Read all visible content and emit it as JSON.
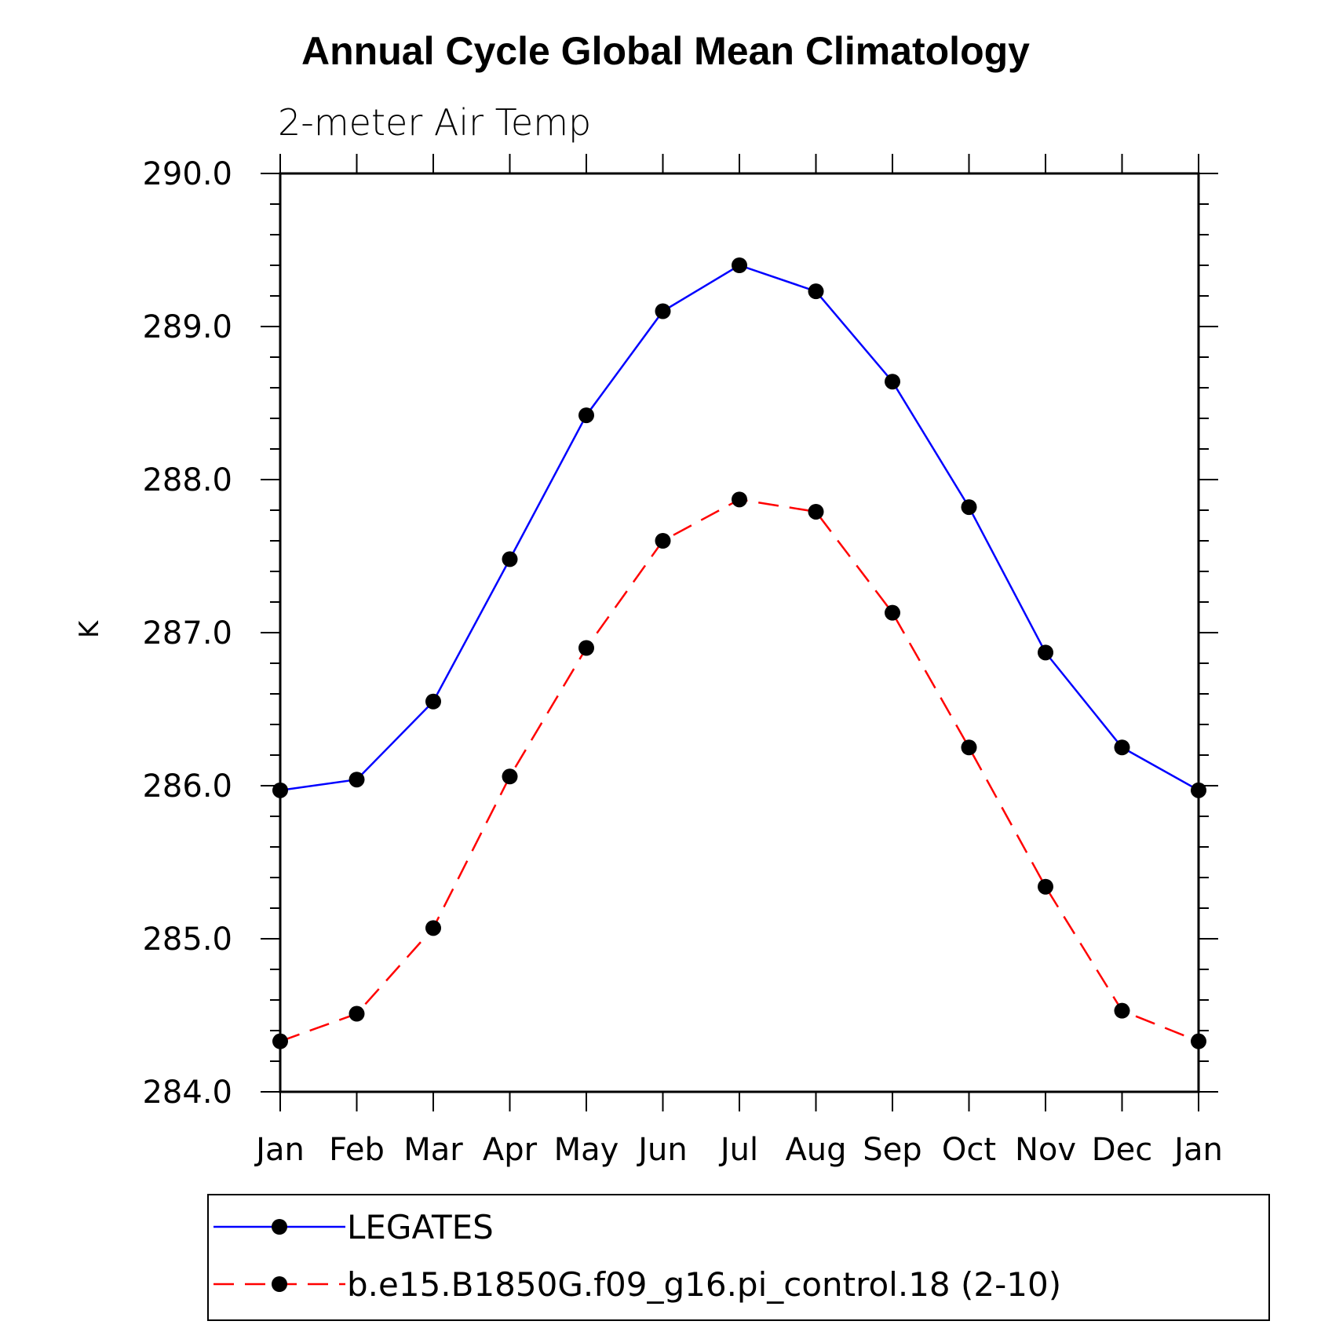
{
  "chart_data": {
    "type": "line",
    "title": "Annual Cycle Global Mean Climatology",
    "subtitle": "2-meter Air Temp",
    "xlabel": "",
    "ylabel": "K",
    "categories": [
      "Jan",
      "Feb",
      "Mar",
      "Apr",
      "May",
      "Jun",
      "Jul",
      "Aug",
      "Sep",
      "Oct",
      "Nov",
      "Dec",
      "Jan"
    ],
    "ylim": [
      284.0,
      290.0
    ],
    "yticks": [
      "284.0",
      "285.0",
      "286.0",
      "287.0",
      "288.0",
      "289.0",
      "290.0"
    ],
    "yminor_step": 0.2,
    "grid": false,
    "legend_position": "bottom",
    "series": [
      {
        "name": "LEGATES",
        "color": "#0000ff",
        "line_style": "solid",
        "marker": "filled-circle",
        "values": [
          285.97,
          286.04,
          286.55,
          287.48,
          288.42,
          289.1,
          289.4,
          289.23,
          288.64,
          287.82,
          286.87,
          286.25,
          285.97
        ]
      },
      {
        "name": "b.e15.B1850G.f09_g16.pi_control.18 (2-10)",
        "color": "#ff0000",
        "line_style": "dashed",
        "marker": "filled-circle",
        "values": [
          284.33,
          284.51,
          285.07,
          286.06,
          286.9,
          287.6,
          287.87,
          287.79,
          287.13,
          286.25,
          285.34,
          284.53,
          284.33
        ]
      }
    ]
  }
}
